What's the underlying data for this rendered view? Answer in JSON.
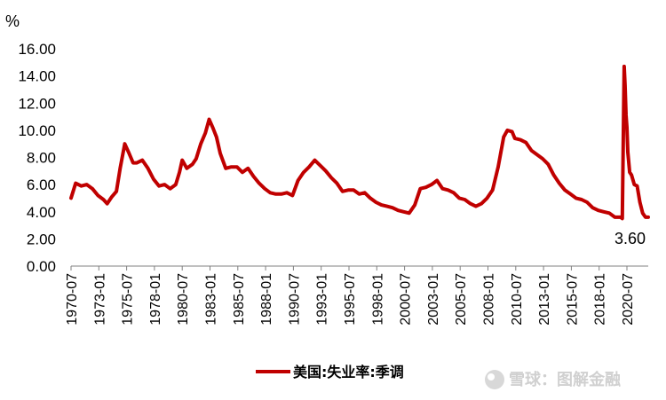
{
  "chart_data": {
    "type": "line",
    "ylabel": "%",
    "ylim": [
      0,
      16
    ],
    "yticks": [
      "0.00",
      "2.00",
      "4.00",
      "6.00",
      "8.00",
      "10.00",
      "12.00",
      "14.00",
      "16.00"
    ],
    "xticks": [
      "1970-07",
      "1973-01",
      "1975-07",
      "1978-01",
      "1980-07",
      "1983-01",
      "1985-07",
      "1988-01",
      "1990-07",
      "1993-01",
      "1995-07",
      "1998-01",
      "2000-07",
      "2003-01",
      "2005-07",
      "2008-01",
      "2010-07",
      "2013-01",
      "2015-07",
      "2018-01",
      "2020-07"
    ],
    "xlim": [
      "1970-07",
      "2022-06"
    ],
    "legend": "bottom",
    "grid": false,
    "series": [
      {
        "name": "美国:失业率:季调",
        "color": "#c00000",
        "points": [
          [
            "1970-07",
            5.0
          ],
          [
            "1970-12",
            6.1
          ],
          [
            "1971-06",
            5.9
          ],
          [
            "1971-12",
            6.0
          ],
          [
            "1972-06",
            5.7
          ],
          [
            "1972-12",
            5.2
          ],
          [
            "1973-06",
            4.9
          ],
          [
            "1973-10",
            4.6
          ],
          [
            "1974-03",
            5.1
          ],
          [
            "1974-08",
            5.5
          ],
          [
            "1974-12",
            7.2
          ],
          [
            "1975-05",
            9.0
          ],
          [
            "1975-09",
            8.4
          ],
          [
            "1976-02",
            7.6
          ],
          [
            "1976-06",
            7.6
          ],
          [
            "1976-12",
            7.8
          ],
          [
            "1977-06",
            7.2
          ],
          [
            "1977-12",
            6.4
          ],
          [
            "1978-06",
            5.9
          ],
          [
            "1978-12",
            6.0
          ],
          [
            "1979-06",
            5.7
          ],
          [
            "1979-12",
            6.0
          ],
          [
            "1980-04",
            6.9
          ],
          [
            "1980-07",
            7.8
          ],
          [
            "1980-12",
            7.2
          ],
          [
            "1981-06",
            7.5
          ],
          [
            "1981-10",
            7.9
          ],
          [
            "1982-03",
            9.0
          ],
          [
            "1982-08",
            9.8
          ],
          [
            "1982-12",
            10.8
          ],
          [
            "1983-04",
            10.2
          ],
          [
            "1983-08",
            9.5
          ],
          [
            "1983-12",
            8.3
          ],
          [
            "1984-06",
            7.2
          ],
          [
            "1984-12",
            7.3
          ],
          [
            "1985-06",
            7.3
          ],
          [
            "1985-12",
            6.9
          ],
          [
            "1986-06",
            7.2
          ],
          [
            "1986-12",
            6.6
          ],
          [
            "1987-06",
            6.1
          ],
          [
            "1987-12",
            5.7
          ],
          [
            "1988-06",
            5.4
          ],
          [
            "1988-12",
            5.3
          ],
          [
            "1989-06",
            5.3
          ],
          [
            "1989-12",
            5.4
          ],
          [
            "1990-06",
            5.2
          ],
          [
            "1990-12",
            6.3
          ],
          [
            "1991-06",
            6.9
          ],
          [
            "1991-12",
            7.3
          ],
          [
            "1992-06",
            7.8
          ],
          [
            "1992-12",
            7.4
          ],
          [
            "1993-06",
            7.0
          ],
          [
            "1993-12",
            6.5
          ],
          [
            "1994-06",
            6.1
          ],
          [
            "1994-12",
            5.5
          ],
          [
            "1995-06",
            5.6
          ],
          [
            "1995-12",
            5.6
          ],
          [
            "1996-06",
            5.3
          ],
          [
            "1996-12",
            5.4
          ],
          [
            "1997-06",
            5.0
          ],
          [
            "1997-12",
            4.7
          ],
          [
            "1998-06",
            4.5
          ],
          [
            "1998-12",
            4.4
          ],
          [
            "1999-06",
            4.3
          ],
          [
            "1999-12",
            4.1
          ],
          [
            "2000-06",
            4.0
          ],
          [
            "2000-12",
            3.9
          ],
          [
            "2001-06",
            4.5
          ],
          [
            "2001-12",
            5.7
          ],
          [
            "2002-06",
            5.8
          ],
          [
            "2002-12",
            6.0
          ],
          [
            "2003-06",
            6.3
          ],
          [
            "2003-12",
            5.7
          ],
          [
            "2004-06",
            5.6
          ],
          [
            "2004-12",
            5.4
          ],
          [
            "2005-06",
            5.0
          ],
          [
            "2005-12",
            4.9
          ],
          [
            "2006-06",
            4.6
          ],
          [
            "2006-12",
            4.4
          ],
          [
            "2007-06",
            4.6
          ],
          [
            "2007-12",
            5.0
          ],
          [
            "2008-06",
            5.6
          ],
          [
            "2008-12",
            7.3
          ],
          [
            "2009-06",
            9.5
          ],
          [
            "2009-10",
            10.0
          ],
          [
            "2010-03",
            9.9
          ],
          [
            "2010-06",
            9.4
          ],
          [
            "2010-12",
            9.3
          ],
          [
            "2011-06",
            9.1
          ],
          [
            "2011-12",
            8.5
          ],
          [
            "2012-06",
            8.2
          ],
          [
            "2012-12",
            7.9
          ],
          [
            "2013-06",
            7.5
          ],
          [
            "2013-12",
            6.7
          ],
          [
            "2014-06",
            6.1
          ],
          [
            "2014-12",
            5.6
          ],
          [
            "2015-06",
            5.3
          ],
          [
            "2015-12",
            5.0
          ],
          [
            "2016-06",
            4.9
          ],
          [
            "2016-12",
            4.7
          ],
          [
            "2017-06",
            4.3
          ],
          [
            "2017-12",
            4.1
          ],
          [
            "2018-06",
            4.0
          ],
          [
            "2018-12",
            3.9
          ],
          [
            "2019-06",
            3.6
          ],
          [
            "2019-12",
            3.6
          ],
          [
            "2020-02",
            3.5
          ],
          [
            "2020-04",
            14.7
          ],
          [
            "2020-05",
            13.3
          ],
          [
            "2020-06",
            11.1
          ],
          [
            "2020-07",
            10.2
          ],
          [
            "2020-08",
            8.4
          ],
          [
            "2020-10",
            6.9
          ],
          [
            "2020-12",
            6.7
          ],
          [
            "2021-03",
            6.0
          ],
          [
            "2021-06",
            5.9
          ],
          [
            "2021-09",
            4.7
          ],
          [
            "2021-12",
            3.9
          ],
          [
            "2022-03",
            3.6
          ],
          [
            "2022-06",
            3.6
          ]
        ]
      }
    ],
    "annotations": [
      {
        "text": "3.60",
        "at": "last"
      }
    ]
  },
  "watermark": {
    "text": "雪球：图解金融"
  }
}
